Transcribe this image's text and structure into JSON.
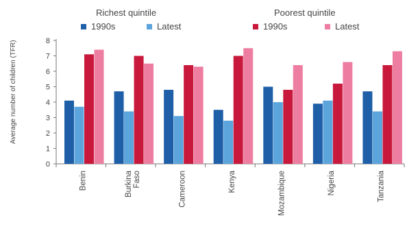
{
  "chart_data": {
    "type": "bar",
    "title": "",
    "xlabel": "",
    "ylabel": "Average number of children (TFR)",
    "ylim": [
      0,
      8
    ],
    "yticks": [
      "0",
      "1",
      "2",
      "3",
      "4",
      "5",
      "6",
      "7",
      "8"
    ],
    "grid": false,
    "categories": [
      "Benin",
      "Burkina Faso",
      "Cameroon",
      "Kenya",
      "Mozambique",
      "Nigeria",
      "Tanzania"
    ],
    "legend_groups": [
      {
        "title": "Richest quintile",
        "items": [
          "1990s",
          "Latest"
        ]
      },
      {
        "title": "Poorest quintile",
        "items": [
          "1990s",
          "Latest"
        ]
      }
    ],
    "series": [
      {
        "name": "1990s",
        "group": "Richest quintile",
        "color": "#1f5fa8",
        "values": [
          4.1,
          4.7,
          4.8,
          3.5,
          5.0,
          3.9,
          4.7
        ]
      },
      {
        "name": "Latest",
        "group": "Richest quintile",
        "color": "#5ba4dc",
        "values": [
          3.7,
          3.4,
          3.1,
          2.8,
          4.0,
          4.1,
          3.4
        ]
      },
      {
        "name": "1990s",
        "group": "Poorest quintile",
        "color": "#c8193c",
        "values": [
          7.1,
          7.0,
          6.4,
          7.0,
          4.8,
          5.2,
          6.4
        ]
      },
      {
        "name": "Latest",
        "group": "Poorest quintile",
        "color": "#ee7ea1",
        "values": [
          7.4,
          6.5,
          6.3,
          7.5,
          6.4,
          6.6,
          7.3
        ]
      }
    ]
  }
}
